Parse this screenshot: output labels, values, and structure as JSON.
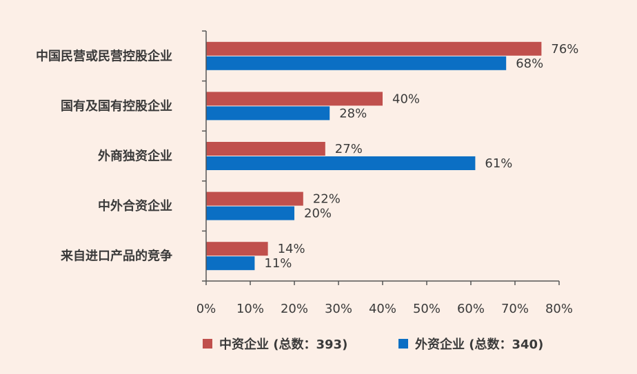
{
  "chart_data": {
    "type": "bar",
    "orientation": "horizontal",
    "categories": [
      "中国民营或民营控股企业",
      "国有及国有控股企业",
      "外商独资企业",
      "中外合资企业",
      "来自进口产品的竞争"
    ],
    "series": [
      {
        "name": "中资企业 (总数：393)",
        "values": [
          76,
          40,
          27,
          22,
          14
        ],
        "labels": [
          "76%",
          "40%",
          "27%",
          "22%",
          "14%"
        ],
        "color": "#c0504d"
      },
      {
        "name": "外资企业 (总数：340)",
        "values": [
          68,
          28,
          61,
          20,
          11
        ],
        "labels": [
          "68%",
          "28%",
          "61%",
          "20%",
          "11%"
        ],
        "color": "#0b6fc4"
      }
    ],
    "xlim": [
      0,
      80
    ],
    "xticks": [
      0,
      10,
      20,
      30,
      40,
      50,
      60,
      70,
      80
    ],
    "xtick_labels": [
      "0%",
      "10%",
      "20%",
      "30%",
      "40%",
      "50%",
      "60%",
      "70%",
      "80%"
    ],
    "grid": false,
    "legend_position": "bottom"
  },
  "colors": {
    "background": "#fcefe7",
    "axis": "#555555"
  }
}
